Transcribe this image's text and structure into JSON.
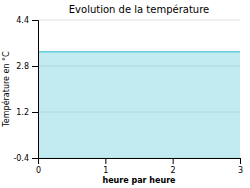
{
  "chart_data": {
    "type": "area",
    "title": "Evolution de la température",
    "xlabel": "heure par heure",
    "ylabel": "Température en °C",
    "x": [
      0,
      3
    ],
    "values": [
      3.3,
      3.3
    ],
    "color": "#66ccdd",
    "xlim": [
      0,
      3
    ],
    "ylim": [
      -0.4,
      4.4
    ],
    "xticks": [
      0,
      1,
      2,
      3
    ],
    "yticks": [
      -0.4,
      1.2,
      2.8,
      4.4
    ],
    "grid": true
  }
}
